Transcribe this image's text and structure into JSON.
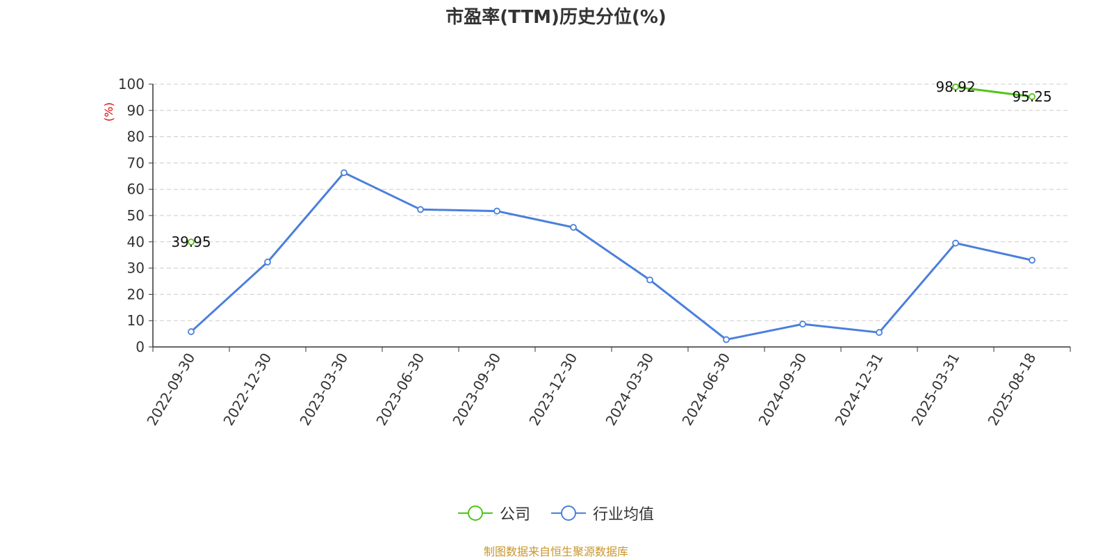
{
  "chart_data": {
    "type": "line",
    "title": "市盈率(TTM)历史分位(%)",
    "ylabel": "(%)",
    "ylim": [
      0,
      100
    ],
    "yticks": [
      0,
      10,
      20,
      30,
      40,
      50,
      60,
      70,
      80,
      90,
      100
    ],
    "categories": [
      "2022-09-30",
      "2022-12-30",
      "2023-03-30",
      "2023-06-30",
      "2023-09-30",
      "2023-12-30",
      "2024-03-30",
      "2024-06-30",
      "2024-09-30",
      "2024-12-31",
      "2025-03-31",
      "2025-08-18"
    ],
    "grid": true,
    "legend_position": "bottom",
    "series": [
      {
        "name": "公司",
        "color": "#52c41a",
        "values": [
          39.95,
          null,
          null,
          null,
          null,
          null,
          null,
          null,
          null,
          null,
          98.92,
          95.25
        ],
        "data_labels": [
          true,
          false,
          false,
          false,
          false,
          false,
          false,
          false,
          false,
          false,
          true,
          true
        ]
      },
      {
        "name": "行业均值",
        "color": "#4a7fdc",
        "values": [
          5.8,
          32.3,
          66.3,
          52.3,
          51.7,
          45.5,
          25.5,
          2.8,
          8.7,
          5.5,
          39.5,
          33.0
        ],
        "data_labels": [
          false,
          false,
          false,
          false,
          false,
          false,
          false,
          false,
          false,
          false,
          false,
          false
        ]
      }
    ]
  },
  "source_text": "制图数据来自恒生聚源数据库",
  "colors": {
    "axis": "#333333",
    "grid": "#cccccc",
    "ylabel": "#e00000",
    "source": "#c8962c"
  }
}
